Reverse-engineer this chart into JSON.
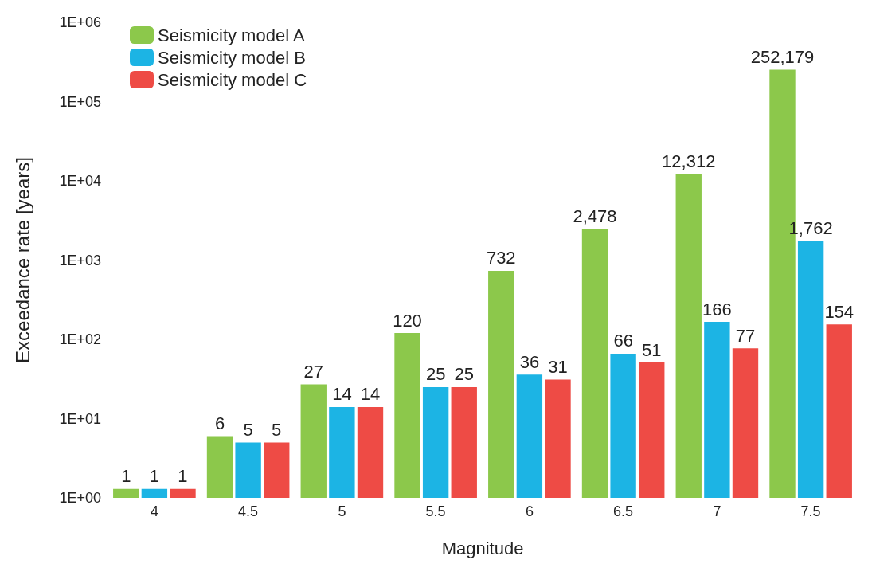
{
  "chart_data": {
    "type": "bar",
    "xlabel": "Magnitude",
    "ylabel": "Exceedance rate [years]",
    "categories": [
      "4",
      "4.5",
      "5",
      "5.5",
      "6",
      "6.5",
      "7",
      "7.5"
    ],
    "series": [
      {
        "name": "Seismicity model A",
        "color": "#8cc84b",
        "values": [
          1.3,
          6,
          27,
          120,
          732,
          2478,
          12312,
          252179
        ],
        "value_labels": [
          "1",
          "6",
          "27",
          "120",
          "732",
          "2,478",
          "12,312",
          "252,179"
        ]
      },
      {
        "name": "Seismicity model B",
        "color": "#1cb4e4",
        "values": [
          1.3,
          5,
          14,
          25,
          36,
          66,
          166,
          1762
        ],
        "value_labels": [
          "1",
          "5",
          "14",
          "25",
          "36",
          "66",
          "166",
          "1,762"
        ]
      },
      {
        "name": "Seismicity model C",
        "color": "#ee4b45",
        "values": [
          1.3,
          5,
          14,
          25,
          31,
          51,
          77,
          154
        ],
        "value_labels": [
          "1",
          "5",
          "14",
          "25",
          "31",
          "51",
          "77",
          "154"
        ]
      }
    ],
    "log": "y",
    "ylim": [
      1,
      1000000
    ],
    "yticks": [
      {
        "value": 1,
        "label": "1E+00"
      },
      {
        "value": 10,
        "label": "1E+01"
      },
      {
        "value": 100,
        "label": "1E+02"
      },
      {
        "value": 1000,
        "label": "1E+03"
      },
      {
        "value": 10000,
        "label": "1E+04"
      },
      {
        "value": 100000,
        "label": "1E+05"
      },
      {
        "value": 1000000,
        "label": "1E+06"
      }
    ],
    "grid": false,
    "legend": "top left"
  }
}
